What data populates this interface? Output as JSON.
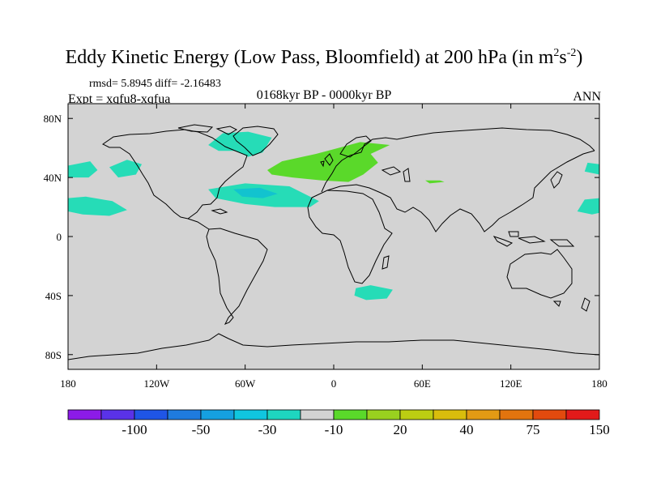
{
  "title": {
    "main": "Eddy Kinetic Energy (Low Pass, Bloomfield) at 200 hPa (in m",
    "sup1": "2",
    "mid": "s",
    "sup2": "-2",
    "close": ")"
  },
  "stats": "rmsd= 5.8945 diff= -2.16483",
  "expt": "Expt = xqfu8-xqfua",
  "period": "0168kyr BP - 0000kyr BP",
  "season": "ANN",
  "map": {
    "lon_ticks": [
      {
        "lon": -180,
        "label": "180"
      },
      {
        "lon": -120,
        "label": "120W"
      },
      {
        "lon": -60,
        "label": "60W"
      },
      {
        "lon": 0,
        "label": "0"
      },
      {
        "lon": 60,
        "label": "60E"
      },
      {
        "lon": 120,
        "label": "120E"
      },
      {
        "lon": 180,
        "label": "180"
      }
    ],
    "lat_ticks": [
      {
        "lat": 80,
        "label": "80N"
      },
      {
        "lat": 40,
        "label": "40N"
      },
      {
        "lat": 0,
        "label": "0"
      },
      {
        "lat": -40,
        "label": "40S"
      },
      {
        "lat": -80,
        "label": "80S"
      }
    ],
    "background_color": "#d3d3d3",
    "anomalies": [
      {
        "name": "NW Atlantic cyan",
        "color": "#26dcb7",
        "pts": [
          [
            -85,
            62
          ],
          [
            -75,
            70
          ],
          [
            -58,
            71
          ],
          [
            -42,
            67
          ],
          [
            -48,
            57
          ],
          [
            -58,
            54
          ],
          [
            -66,
            58
          ],
          [
            -78,
            58
          ]
        ]
      },
      {
        "name": "NE Pacific cyan",
        "color": "#26dcb7",
        "pts": [
          [
            -152,
            47
          ],
          [
            -140,
            52
          ],
          [
            -130,
            49
          ],
          [
            -134,
            42
          ],
          [
            -146,
            40
          ]
        ]
      },
      {
        "name": "Dateline west cyan",
        "color": "#26dcb7",
        "pts": [
          [
            -180,
            48
          ],
          [
            -165,
            51
          ],
          [
            -160,
            45
          ],
          [
            -166,
            40
          ],
          [
            -180,
            40
          ]
        ]
      },
      {
        "name": "Dateline east cyan",
        "color": "#26dcb7",
        "pts": [
          [
            180,
            49
          ],
          [
            172,
            50
          ],
          [
            170,
            44
          ],
          [
            180,
            42
          ]
        ]
      },
      {
        "name": "Subtropical Pacific cyan",
        "color": "#26dcb7",
        "pts": [
          [
            -180,
            26
          ],
          [
            -168,
            27
          ],
          [
            -150,
            24
          ],
          [
            -140,
            18
          ],
          [
            -152,
            14
          ],
          [
            -170,
            15
          ],
          [
            -180,
            17
          ]
        ]
      },
      {
        "name": "NW Pacific cyan",
        "color": "#26dcb7",
        "pts": [
          [
            180,
            26
          ],
          [
            170,
            25
          ],
          [
            165,
            17
          ],
          [
            175,
            15
          ],
          [
            180,
            16
          ]
        ]
      },
      {
        "name": "Subtropical Atlantic cyan",
        "color": "#26dcb7",
        "pts": [
          [
            -85,
            32
          ],
          [
            -60,
            36
          ],
          [
            -30,
            34
          ],
          [
            -10,
            24
          ],
          [
            -16,
            20
          ],
          [
            -40,
            20
          ],
          [
            -60,
            22
          ],
          [
            -80,
            26
          ]
        ]
      },
      {
        "name": "Subtropical Atlantic core",
        "color": "#12c3cf",
        "pts": [
          [
            -68,
            32
          ],
          [
            -50,
            33
          ],
          [
            -38,
            29
          ],
          [
            -48,
            26
          ],
          [
            -62,
            27
          ]
        ]
      },
      {
        "name": "South Atlantic cyan",
        "color": "#26dcb7",
        "pts": [
          [
            15,
            -35
          ],
          [
            25,
            -33
          ],
          [
            40,
            -36
          ],
          [
            36,
            -42
          ],
          [
            22,
            -43
          ],
          [
            14,
            -40
          ]
        ]
      },
      {
        "name": "Europe green",
        "color": "#5ad92a",
        "pts": [
          [
            -45,
            45
          ],
          [
            -35,
            51
          ],
          [
            -12,
            56
          ],
          [
            3,
            60
          ],
          [
            18,
            64
          ],
          [
            38,
            62
          ],
          [
            25,
            56
          ],
          [
            30,
            50
          ],
          [
            20,
            42
          ],
          [
            10,
            37
          ],
          [
            -8,
            38
          ],
          [
            -28,
            40
          ],
          [
            -42,
            42
          ]
        ]
      },
      {
        "name": "Black Sea green",
        "color": "#5ad92a",
        "pts": [
          [
            62,
            38
          ],
          [
            72,
            38
          ],
          [
            75,
            37
          ],
          [
            65,
            36
          ]
        ]
      }
    ],
    "coast_color": "#000000"
  },
  "colorbar": {
    "colors": [
      "#8c1be8",
      "#5a32e8",
      "#1f55e6",
      "#1f7bde",
      "#15a0e0",
      "#10c6df",
      "#1ed6c0",
      "#d3d3d3",
      "#5ad92a",
      "#99d11f",
      "#bccd12",
      "#d9bd0c",
      "#e29a14",
      "#e2740e",
      "#e24a0e",
      "#e21a1a"
    ],
    "labels": [
      "-100",
      "-50",
      "-30",
      "-10",
      "20",
      "40",
      "75",
      "150"
    ]
  }
}
